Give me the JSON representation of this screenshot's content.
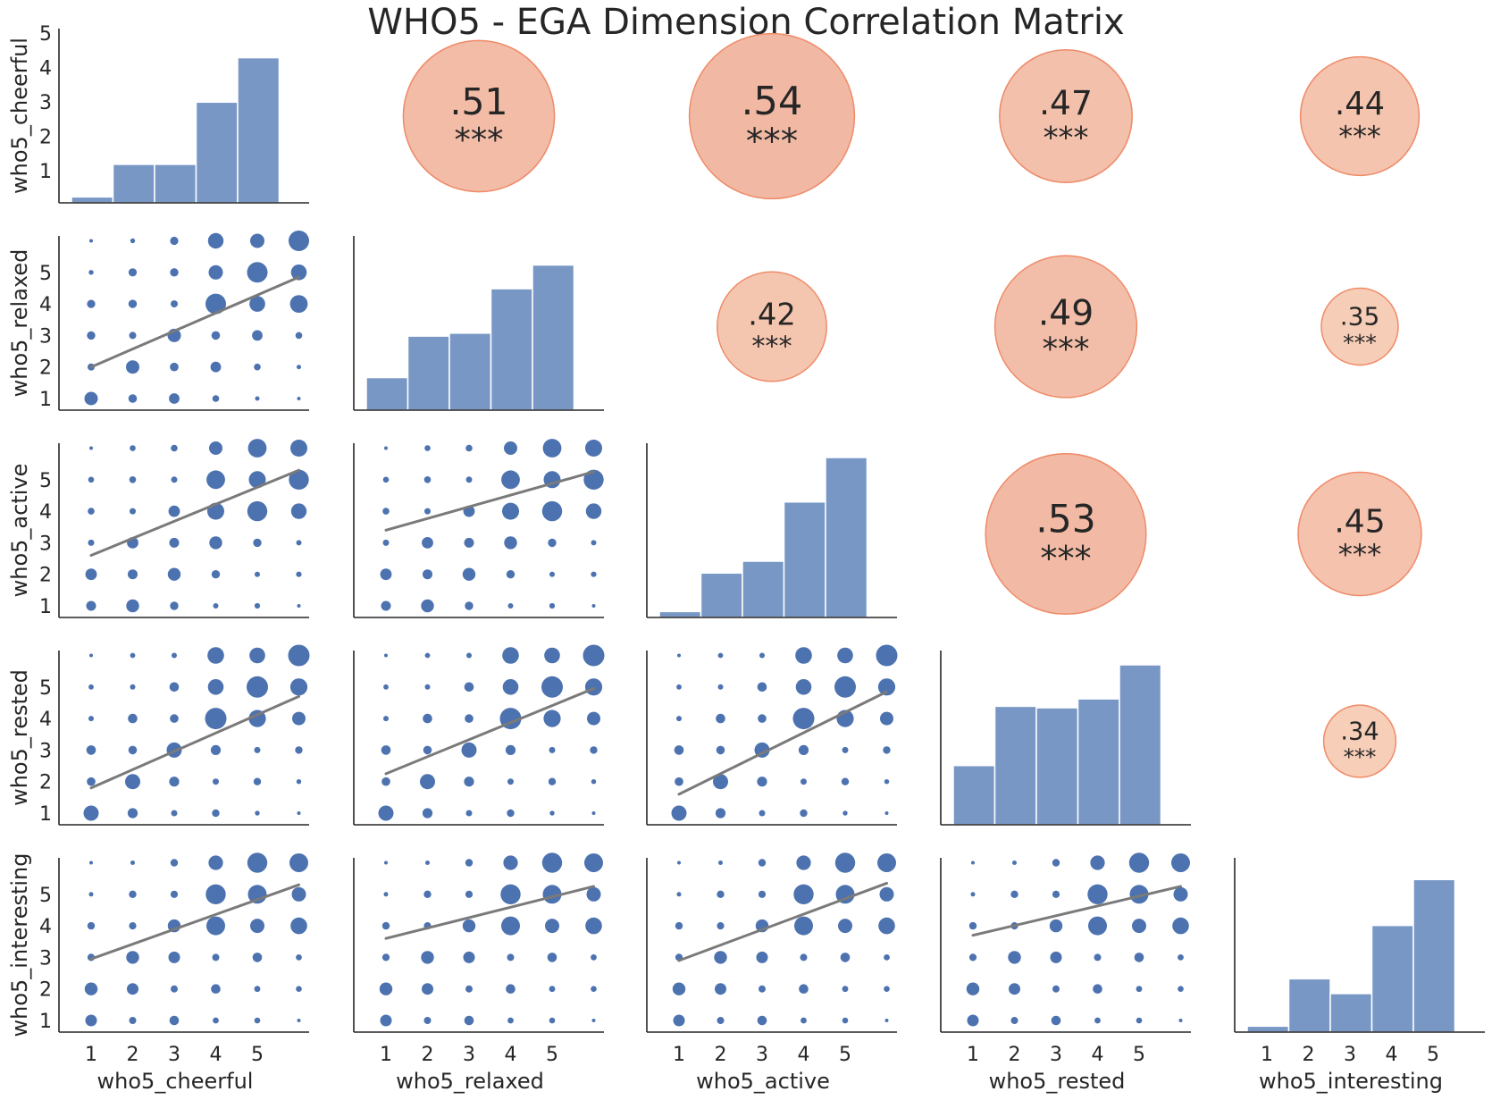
{
  "chart_data": {
    "type": "pairplot",
    "title": "WHO5 - EGA Dimension Correlation Matrix",
    "variables": [
      "who5_cheerful",
      "who5_relaxed",
      "who5_active",
      "who5_rested",
      "who5_interesting"
    ],
    "x_ticks": [
      "1",
      "2",
      "3",
      "4",
      "5"
    ],
    "y_ticks": [
      "1",
      "2",
      "3",
      "4",
      "5"
    ],
    "histograms": {
      "who5_cheerful": [
        0.2,
        1.3,
        1.3,
        3.4,
        4.9
      ],
      "who5_relaxed": [
        1.1,
        2.5,
        2.6,
        4.1,
        4.9
      ],
      "who5_active": [
        0.2,
        1.5,
        1.9,
        3.9,
        5.4
      ],
      "who5_rested": [
        2.0,
        4.0,
        3.95,
        4.25,
        5.4
      ],
      "who5_interesting": [
        0.2,
        1.8,
        1.3,
        3.6,
        5.15
      ]
    },
    "correlations": [
      {
        "row": "who5_cheerful",
        "col": "who5_relaxed",
        "r": ".51",
        "sig": "***"
      },
      {
        "row": "who5_cheerful",
        "col": "who5_active",
        "r": ".54",
        "sig": "***"
      },
      {
        "row": "who5_cheerful",
        "col": "who5_rested",
        "r": ".47",
        "sig": "***"
      },
      {
        "row": "who5_cheerful",
        "col": "who5_interesting",
        "r": ".44",
        "sig": "***"
      },
      {
        "row": "who5_relaxed",
        "col": "who5_active",
        "r": ".42",
        "sig": "***"
      },
      {
        "row": "who5_relaxed",
        "col": "who5_rested",
        "r": ".49",
        "sig": "***"
      },
      {
        "row": "who5_relaxed",
        "col": "who5_interesting",
        "r": ".35",
        "sig": "***"
      },
      {
        "row": "who5_active",
        "col": "who5_rested",
        "r": ".53",
        "sig": "***"
      },
      {
        "row": "who5_active",
        "col": "who5_interesting",
        "r": ".45",
        "sig": "***"
      },
      {
        "row": "who5_rested",
        "col": "who5_interesting",
        "r": ".34",
        "sig": "***"
      }
    ],
    "grid": false,
    "colors": {
      "histogram": "#7897c5",
      "scatter": "#4c72b0",
      "regression_line": "#7a7a7a",
      "correlation_bubble_low": "#f7cfb8",
      "correlation_bubble_high": "#f2a48b"
    }
  }
}
